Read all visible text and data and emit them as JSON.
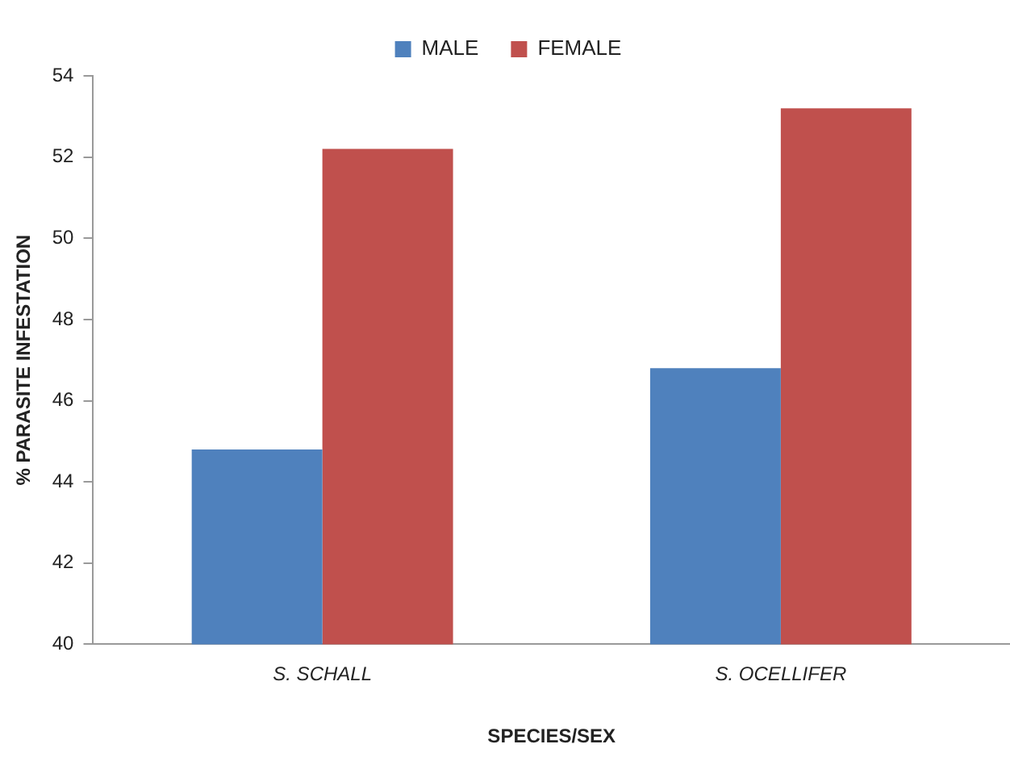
{
  "chart_data": {
    "type": "bar",
    "xlabel": "SPECIES/SEX",
    "ylabel": "% PARASITE INFESTATION",
    "categories": [
      "S. SCHALL",
      "S. OCELLIFER"
    ],
    "series": [
      {
        "name": "MALE",
        "color": "#4f81bd",
        "values": [
          44.8,
          46.8
        ]
      },
      {
        "name": "FEMALE",
        "color": "#c0504d",
        "values": [
          52.2,
          53.2
        ]
      }
    ],
    "ylim": [
      40,
      54
    ],
    "yticks": [
      40,
      42,
      44,
      46,
      48,
      50,
      52,
      54
    ],
    "grid": false,
    "legend": "top"
  }
}
